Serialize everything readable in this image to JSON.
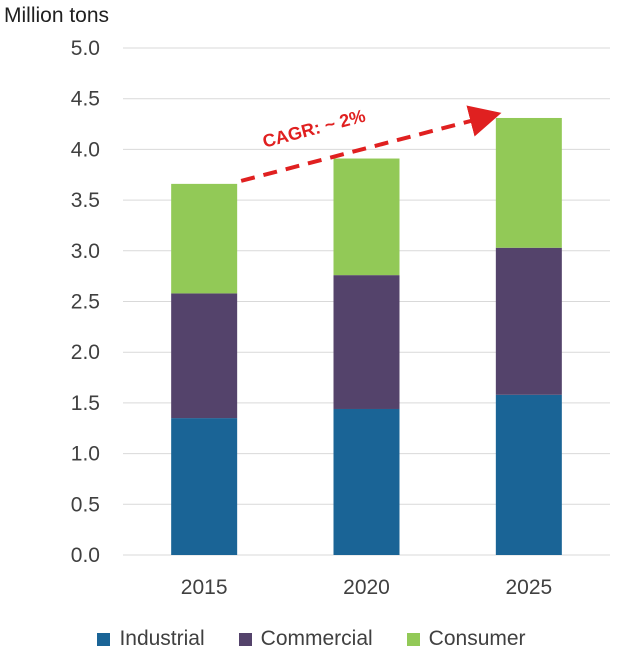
{
  "chart_data": {
    "type": "bar",
    "stacked": true,
    "unit_label": "Million tons",
    "categories": [
      "2015",
      "2020",
      "2025"
    ],
    "series": [
      {
        "name": "Industrial",
        "values": [
          1.35,
          1.44,
          1.58
        ],
        "color": "#1a6496"
      },
      {
        "name": "Commercial",
        "values": [
          1.23,
          1.32,
          1.45
        ],
        "color": "#54436b"
      },
      {
        "name": "Consumer",
        "values": [
          1.08,
          1.15,
          1.28
        ],
        "color": "#92c957"
      }
    ],
    "ylim": [
      0,
      5.0
    ],
    "yticks": [
      "0.0",
      "0.5",
      "1.0",
      "1.5",
      "2.0",
      "2.5",
      "3.0",
      "3.5",
      "4.0",
      "4.5",
      "5.0"
    ],
    "grid": true,
    "legend_position": "bottom",
    "annotation": {
      "text": "CAGR: ~ 2%",
      "color": "#e02020",
      "style": "dashed-arrow",
      "from_category": "2015",
      "to_category": "2025"
    }
  }
}
